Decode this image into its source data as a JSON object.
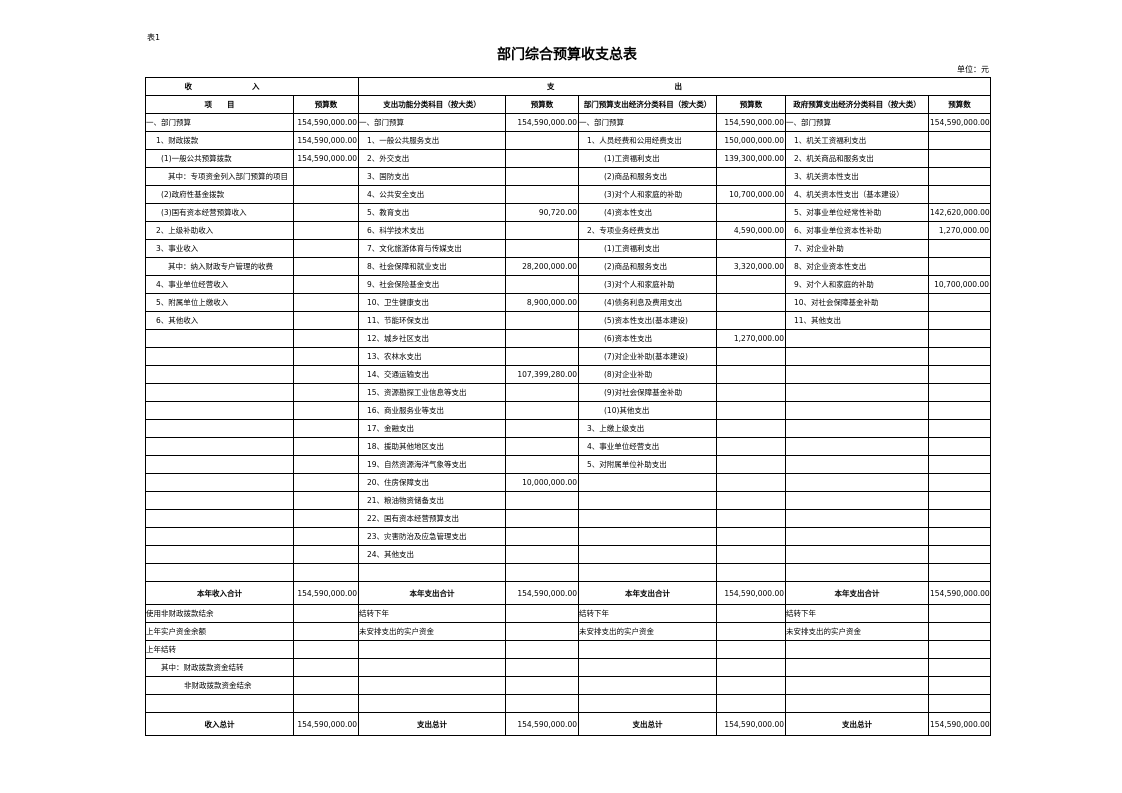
{
  "note": "表1",
  "title": "部门综合预算收支总表",
  "unit": "单位：元",
  "table": {
    "groups": [
      "收入",
      "支出"
    ],
    "columns": [
      "项　　目",
      "预算数",
      "支出功能分类科目（按大类）",
      "预算数",
      "部门预算支出经济分类科目（按大类）",
      "预算数",
      "政府预算支出经济分类科目（按大类）",
      "预算数"
    ],
    "rows": [
      [
        "一、部门预算",
        "154,590,000.00",
        "一、部门预算",
        "154,590,000.00",
        "一、部门预算",
        "154,590,000.00",
        "一、部门预算",
        "154,590,000.00"
      ],
      [
        "1、财政拨款",
        "154,590,000.00",
        "1、一般公共服务支出",
        null,
        "1、人员经费和公用经费支出",
        "150,000,000.00",
        "1、机关工资福利支出",
        null
      ],
      [
        "(1)一般公共预算拨款",
        "154,590,000.00",
        "2、外交支出",
        null,
        "(1)工资福利支出",
        "139,300,000.00",
        "2、机关商品和服务支出",
        null
      ],
      [
        "其中：专项资金列入部门预算的项目",
        null,
        "3、国防支出",
        null,
        "(2)商品和服务支出",
        null,
        "3、机关资本性支出",
        null
      ],
      [
        "(2)政府性基金拨款",
        null,
        "4、公共安全支出",
        null,
        "(3)对个人和家庭的补助",
        "10,700,000.00",
        "4、机关资本性支出（基本建设）",
        null
      ],
      [
        "(3)国有资本经营预算收入",
        null,
        "5、教育支出",
        "90,720.00",
        "(4)资本性支出",
        null,
        "5、对事业单位经常性补助",
        "142,620,000.00"
      ],
      [
        "2、上级补助收入",
        null,
        "6、科学技术支出",
        null,
        "2、专项业务经费支出",
        "4,590,000.00",
        "6、对事业单位资本性补助",
        "1,270,000.00"
      ],
      [
        "3、事业收入",
        null,
        "7、文化旅游体育与传媒支出",
        null,
        "(1)工资福利支出",
        null,
        "7、对企业补助",
        null
      ],
      [
        "其中：纳入财政专户管理的收费",
        null,
        "8、社会保障和就业支出",
        "28,200,000.00",
        "(2)商品和服务支出",
        "3,320,000.00",
        "8、对企业资本性支出",
        null
      ],
      [
        "4、事业单位经营收入",
        null,
        "9、社会保险基金支出",
        null,
        "(3)对个人和家庭补助",
        null,
        "9、对个人和家庭的补助",
        "10,700,000.00"
      ],
      [
        "5、附属单位上缴收入",
        null,
        "10、卫生健康支出",
        "8,900,000.00",
        "(4)债务利息及费用支出",
        null,
        "10、对社会保障基金补助",
        null
      ],
      [
        "6、其他收入",
        null,
        "11、节能环保支出",
        null,
        "(5)资本性支出(基本建设)",
        null,
        "11、其他支出",
        null
      ],
      [
        null,
        null,
        "12、城乡社区支出",
        null,
        "(6)资本性支出",
        "1,270,000.00",
        null,
        null
      ],
      [
        null,
        null,
        "13、农林水支出",
        null,
        "(7)对企业补助(基本建设)",
        null,
        null,
        null
      ],
      [
        null,
        null,
        "14、交通运输支出",
        "107,399,280.00",
        "(8)对企业补助",
        null,
        null,
        null
      ],
      [
        null,
        null,
        "15、资源勘探工业信息等支出",
        null,
        "(9)对社会保障基金补助",
        null,
        null,
        null
      ],
      [
        null,
        null,
        "16、商业服务业等支出",
        null,
        "(10)其他支出",
        null,
        null,
        null
      ],
      [
        null,
        null,
        "17、金融支出",
        null,
        "3、上缴上级支出",
        null,
        null,
        null
      ],
      [
        null,
        null,
        "18、援助其他地区支出",
        null,
        "4、事业单位经营支出",
        null,
        null,
        null
      ],
      [
        null,
        null,
        "19、自然资源海洋气象等支出",
        null,
        "5、对附属单位补助支出",
        null,
        null,
        null
      ],
      [
        null,
        null,
        "20、住房保障支出",
        "10,000,000.00",
        null,
        null,
        null,
        null
      ],
      [
        null,
        null,
        "21、粮油物资储备支出",
        null,
        null,
        null,
        null,
        null
      ],
      [
        null,
        null,
        "22、国有资本经营预算支出",
        null,
        null,
        null,
        null,
        null
      ],
      [
        null,
        null,
        "23、灾害防治及应急管理支出",
        null,
        null,
        null,
        null,
        null
      ],
      [
        null,
        null,
        "24、其他支出",
        null,
        null,
        null,
        null,
        null
      ],
      [
        null,
        null,
        null,
        null,
        null,
        null,
        null,
        null
      ],
      [
        "本年收入合计",
        "154,590,000.00",
        "本年支出合计",
        "154,590,000.00",
        "本年支出合计",
        "154,590,000.00",
        "本年支出合计",
        "154,590,000.00"
      ],
      [
        "使用非财政拨款结余",
        null,
        "结转下年",
        null,
        "结转下年",
        null,
        "结转下年",
        null
      ],
      [
        "上年实户资金余额",
        null,
        "未安排支出的实户资金",
        null,
        "未安排支出的实户资金",
        null,
        "未安排支出的实户资金",
        null
      ],
      [
        "上年结转",
        null,
        null,
        null,
        null,
        null,
        null,
        null
      ],
      [
        "其中：财政拨款资金结转",
        null,
        null,
        null,
        null,
        null,
        null,
        null
      ],
      [
        "非财政拨款资金结余",
        null,
        null,
        null,
        null,
        null,
        null,
        null
      ],
      [
        null,
        null,
        null,
        null,
        null,
        null,
        null,
        null
      ],
      [
        "收入总计",
        "154,590,000.00",
        "支出总计",
        "154,590,000.00",
        "支出总计",
        "154,590,000.00",
        "支出总计",
        "154,590,000.00"
      ]
    ]
  }
}
